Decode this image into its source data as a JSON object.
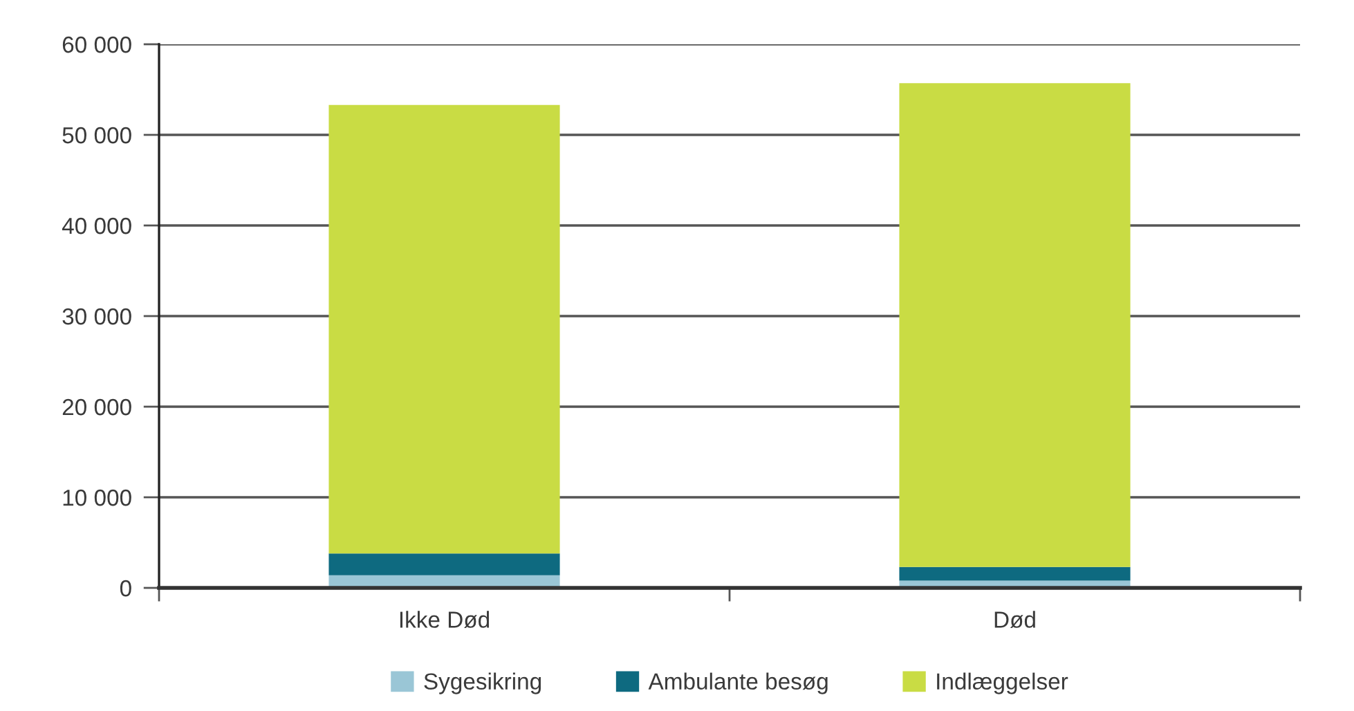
{
  "chart_data": {
    "type": "bar",
    "stacked": true,
    "categories": [
      "Ikke Død",
      "Død"
    ],
    "series": [
      {
        "name": "Sygesikring",
        "color": "#9ac6d6",
        "values": [
          1400,
          800
        ]
      },
      {
        "name": "Ambulante besøg",
        "color": "#0e6a80",
        "values": [
          2400,
          1500
        ]
      },
      {
        "name": "Indlæggelser",
        "color": "#c9dc44",
        "values": [
          49500,
          53400
        ]
      }
    ],
    "ylim": [
      0,
      60000
    ],
    "yticks": [
      0,
      {
        "value": 10000,
        "label": "10 000"
      },
      {
        "value": 20000,
        "label": "20 000"
      },
      {
        "value": 30000,
        "label": "30 000"
      },
      {
        "value": 40000,
        "label": "40 000"
      },
      {
        "value": 50000,
        "label": "50 000"
      },
      {
        "value": 60000,
        "label": "60 000"
      }
    ],
    "grid": "y",
    "legend": "bottom"
  }
}
